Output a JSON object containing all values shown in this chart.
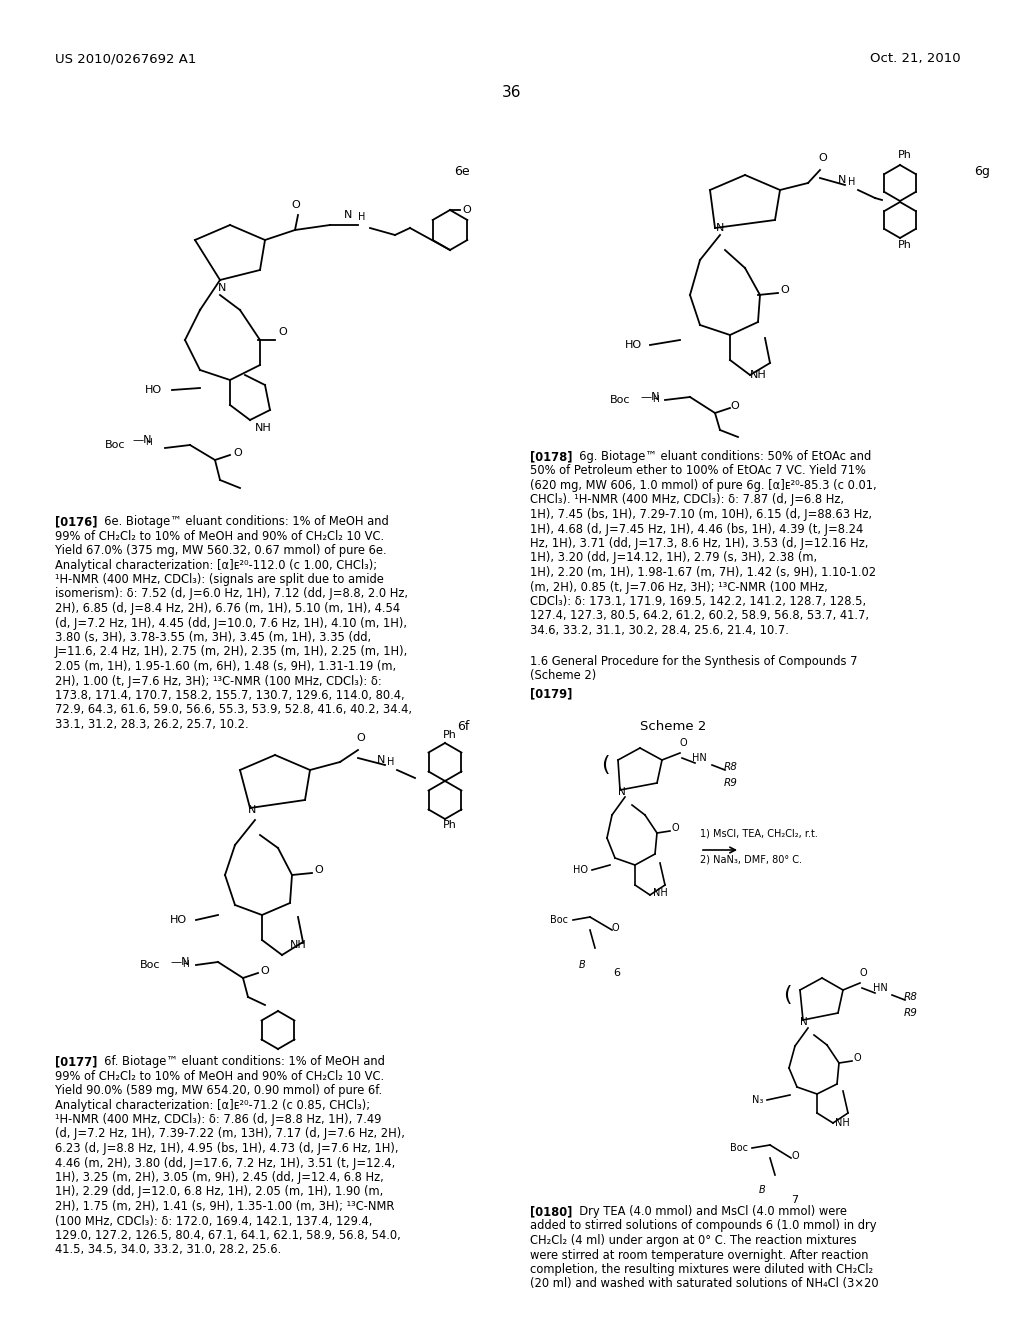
{
  "page_header_left": "US 2010/0267692 A1",
  "page_header_right": "Oct. 21, 2010",
  "page_number": "36",
  "label_6e": "6e",
  "label_6f": "6f",
  "label_6g": "6g",
  "para_0176_bold": "[0176]",
  "para_0176_text": "  6e. Biotage™ eluant conditions: 1% of MeOH and 99% of CH₂Cl₂ to 10% of MeOH and 90% of CH₂Cl₂ 10 VC. Yield 67.0% (375 mg, MW 560.32, 0.67 mmol) of pure 6e. Analytical characterization: [α]ᴇ²⁰-112.0 (c 1.00, CHCl₃); ¹H-NMR (400 MHz, CDCl₃): (signals are split due to amide isomerism): δ: 7.52 (d, J=6.0 Hz, 1H), 7.12 (dd, J=8.8, 2.0 Hz, 2H), 6.85 (d, J=8.4 Hz, 2H), 6.76 (m, 1H), 5.10 (m, 1H), 4.54 (d, J=7.2 Hz, 1H), 4.45 (dd, J=10.0, 7.6 Hz, 1H), 4.10 (m, 1H), 3.80 (s, 3H), 3.78-3.55 (m, 3H), 3.45 (m, 1H), 3.35 (dd, J=11.6, 2.4 Hz, 1H), 2.75 (m, 2H), 2.35 (m, 1H), 2.25 (m, 1H), 2.05 (m, 1H), 1.95-1.60 (m, 6H), 1.48 (s, 9H), 1.31-1.19 (m, 2H), 1.00 (t, J=7.6 Hz, 3H); ¹³C-NMR (100 MHz, CDCl₃): δ: 173.8, 171.4, 170.7, 158.2, 155.7, 130.7, 129.6, 114.0, 80.4, 72.9, 64.3, 61.6, 59.0, 56.6, 55.3, 53.9, 52.8, 41.6, 40.2, 34.4, 33.1, 31.2, 28.3, 26.2, 25.7, 10.2.",
  "para_0177_bold": "[0177]",
  "para_0177_text": "  6f. Biotage™ eluant conditions: 1% of MeOH and 99% of CH₂Cl₂ to 10% of MeOH and 90% of CH₂Cl₂ 10 VC. Yield 90.0% (589 mg, MW 654.20, 0.90 mmol) of pure 6f. Analytical characterization: [α]ᴇ²⁰-71.2 (c 0.85, CHCl₃); ¹H-NMR (400 MHz, CDCl₃): δ: 7.86 (d, J=8.8 Hz, 1H), 7.49 (d, J=7.2 Hz, 1H), 7.39-7.22 (m, 13H), 7.17 (d, J=7.6 Hz, 2H), 6.23 (d, J=8.8 Hz, 1H), 4.95 (bs, 1H), 4.73 (d, J=7.6 Hz, 1H), 4.46 (m, 2H), 3.80 (dd, J=17.6, 7.2 Hz, 1H), 3.51 (t, J=12.4, 1H), 3.25 (m, 2H), 3.05 (m, 9H), 2.45 (dd, J=12.4, 6.8 Hz, 1H), 2.29 (dd, J=12.0, 6.8 Hz, 1H), 2.05 (m, 1H), 1.90 (m, 2H), 1.75 (m, 2H), 1.41 (s, 9H), 1.35-1.00 (m, 3H); ¹³C-NMR (100 MHz, CDCl₃): δ: 172.0, 169.4, 142.1, 137.4, 129.4, 129.0, 127.2, 126.5, 80.4, 67.1, 64.1, 62.1, 58.9, 56.8, 54.0, 41.5, 34.5, 34.0, 33.2, 31.0, 28.2, 25.6.",
  "para_0178_bold": "[0178]",
  "para_0178_text": "  6g. Biotage™ eluant conditions: 50% of EtOAc and 50% of Petroleum ether to 100% of EtOAc 7 VC. Yield 71% (620 mg, MW 606, 1.0 mmol) of pure 6g. [α]ᴇ²⁰-85.3 (c 0.01, CHCl₃). ¹H-NMR (400 MHz, CDCl₃): δ: 7.87 (d, J=6.8 Hz, 1H), 7.45 (bs, 1H), 7.29-7.10 (m, 10H), 6.15 (d, J=88.63 Hz, 1H), 4.68 (d, J=7.45 Hz, 1H), 4.46 (bs, 1H), 4.39 (t, J=8.24 Hz, 1H), 3.71 (dd, J=17.3, 8.6 Hz, 1H), 3.53 (d, J=12.16 Hz, 1H), 3.20 (dd, J=14.12, 1H), 2.79 (s, 3H), 2.38 (m, 1H), 2.20 (m, 1H), 1.98-1.67 (m, 7H), 1.42 (s, 9H), 1.10-1.02 (m, 2H), 0.85 (t, J=7.06 Hz, 3H); ¹³C-NMR (100 MHz, CDCl₃): δ: 173.1, 171.9, 169.5, 142.2, 141.2, 128.7, 128.5, 127.4, 127.3, 80.5, 64.2, 61.2, 60.2, 58.9, 56.8, 53.7, 41.7, 34.6, 33.2, 31.1, 30.2, 28.4, 25.6, 21.4, 10.7.",
  "section_title": "1.6 General Procedure for the Synthesis of Compounds 7 (Scheme 2)",
  "para_0179_bold": "[0179]",
  "scheme2_label": "Scheme 2",
  "label_6": "6",
  "label_7": "7",
  "para_0180_bold": "[0180]",
  "para_0180_text": "  Dry TEA (4.0 mmol) and MsCl (4.0 mmol) were added to stirred solutions of compounds 6 (1.0 mmol) in dry CH₂Cl₂ (4 ml) under argon at 0° C. The reaction mixtures were stirred at room temperature overnight. After reaction completion, the resulting mixtures were diluted with CH₂Cl₂ (20 ml) and washed with saturated solutions of NH₄Cl (3×20",
  "bg_color": "#ffffff",
  "text_color": "#000000",
  "font_size_header": 9.5,
  "font_size_body": 9.0,
  "font_size_label": 9.0
}
